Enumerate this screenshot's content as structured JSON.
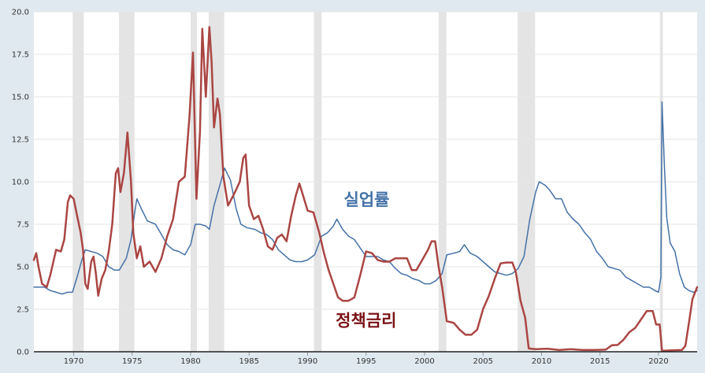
{
  "chart_data": {
    "type": "line",
    "title": "",
    "xlabel": "",
    "ylabel": "",
    "xlim": [
      1966.6,
      2023.3
    ],
    "ylim": [
      0,
      20
    ],
    "grid": "horizontal",
    "legend": "none",
    "y_ticks": [
      "0.0",
      "2.5",
      "5.0",
      "7.5",
      "10.0",
      "12.5",
      "15.0",
      "17.5",
      "20.0"
    ],
    "x_ticks": [
      "1970",
      "1975",
      "1980",
      "1985",
      "1990",
      "1995",
      "2000",
      "2005",
      "2010",
      "2015",
      "2020"
    ],
    "colors": {
      "background": "#e1e9f0",
      "plot_background": "#ffffff",
      "grid": "#e6e6e6",
      "recession": "#e4e4e4",
      "unemployment": "#4572a7",
      "policy_rate": "#aa4643",
      "policy_label": "#7a1216"
    },
    "recessions": [
      [
        1969.92,
        1970.87
      ],
      [
        1973.87,
        1975.2
      ],
      [
        1980.0,
        1980.54
      ],
      [
        1981.54,
        1982.87
      ],
      [
        1990.54,
        1991.2
      ],
      [
        2001.2,
        2001.87
      ],
      [
        2007.95,
        2009.45
      ],
      [
        2020.12,
        2020.37
      ]
    ],
    "series": [
      {
        "name": "실업률",
        "color": "#4572a7",
        "points": [
          [
            1966.6,
            3.8
          ],
          [
            1967.5,
            3.8
          ],
          [
            1968.0,
            3.6
          ],
          [
            1968.5,
            3.5
          ],
          [
            1969.0,
            3.4
          ],
          [
            1969.5,
            3.5
          ],
          [
            1969.9,
            3.5
          ],
          [
            1970.3,
            4.4
          ],
          [
            1970.7,
            5.4
          ],
          [
            1971.0,
            6.0
          ],
          [
            1971.5,
            5.9
          ],
          [
            1972.0,
            5.8
          ],
          [
            1972.5,
            5.6
          ],
          [
            1973.0,
            5.0
          ],
          [
            1973.5,
            4.8
          ],
          [
            1973.9,
            4.8
          ],
          [
            1974.5,
            5.5
          ],
          [
            1974.9,
            6.6
          ],
          [
            1975.2,
            8.1
          ],
          [
            1975.4,
            9.0
          ],
          [
            1975.8,
            8.4
          ],
          [
            1976.3,
            7.7
          ],
          [
            1977.0,
            7.5
          ],
          [
            1977.5,
            6.9
          ],
          [
            1978.0,
            6.3
          ],
          [
            1978.5,
            6.0
          ],
          [
            1979.0,
            5.9
          ],
          [
            1979.5,
            5.7
          ],
          [
            1980.0,
            6.3
          ],
          [
            1980.4,
            7.5
          ],
          [
            1980.8,
            7.5
          ],
          [
            1981.3,
            7.4
          ],
          [
            1981.6,
            7.2
          ],
          [
            1982.0,
            8.6
          ],
          [
            1982.5,
            9.8
          ],
          [
            1982.9,
            10.8
          ],
          [
            1983.4,
            10.1
          ],
          [
            1983.9,
            8.4
          ],
          [
            1984.3,
            7.5
          ],
          [
            1984.8,
            7.3
          ],
          [
            1985.5,
            7.2
          ],
          [
            1986.0,
            7.0
          ],
          [
            1986.5,
            6.9
          ],
          [
            1987.0,
            6.6
          ],
          [
            1987.5,
            6.0
          ],
          [
            1988.0,
            5.7
          ],
          [
            1988.5,
            5.4
          ],
          [
            1989.0,
            5.3
          ],
          [
            1989.5,
            5.3
          ],
          [
            1990.0,
            5.4
          ],
          [
            1990.6,
            5.7
          ],
          [
            1991.2,
            6.8
          ],
          [
            1991.7,
            7.0
          ],
          [
            1992.2,
            7.4
          ],
          [
            1992.5,
            7.8
          ],
          [
            1993.0,
            7.2
          ],
          [
            1993.5,
            6.8
          ],
          [
            1994.0,
            6.6
          ],
          [
            1994.5,
            6.1
          ],
          [
            1995.0,
            5.6
          ],
          [
            1995.5,
            5.6
          ],
          [
            1996.0,
            5.6
          ],
          [
            1996.5,
            5.4
          ],
          [
            1997.0,
            5.3
          ],
          [
            1997.5,
            4.9
          ],
          [
            1998.0,
            4.6
          ],
          [
            1998.5,
            4.5
          ],
          [
            1999.0,
            4.3
          ],
          [
            1999.5,
            4.2
          ],
          [
            2000.0,
            4.0
          ],
          [
            2000.5,
            4.0
          ],
          [
            2001.0,
            4.2
          ],
          [
            2001.5,
            4.6
          ],
          [
            2001.9,
            5.7
          ],
          [
            2002.5,
            5.8
          ],
          [
            2003.0,
            5.9
          ],
          [
            2003.4,
            6.3
          ],
          [
            2003.9,
            5.8
          ],
          [
            2004.5,
            5.6
          ],
          [
            2005.0,
            5.3
          ],
          [
            2005.5,
            5.0
          ],
          [
            2006.0,
            4.7
          ],
          [
            2006.5,
            4.6
          ],
          [
            2007.0,
            4.5
          ],
          [
            2007.5,
            4.6
          ],
          [
            2008.0,
            4.9
          ],
          [
            2008.5,
            5.6
          ],
          [
            2009.0,
            7.8
          ],
          [
            2009.5,
            9.4
          ],
          [
            2009.8,
            10.0
          ],
          [
            2010.3,
            9.8
          ],
          [
            2010.7,
            9.5
          ],
          [
            2011.2,
            9.0
          ],
          [
            2011.7,
            9.0
          ],
          [
            2012.2,
            8.2
          ],
          [
            2012.7,
            7.8
          ],
          [
            2013.2,
            7.5
          ],
          [
            2013.7,
            7.0
          ],
          [
            2014.2,
            6.6
          ],
          [
            2014.7,
            5.9
          ],
          [
            2015.2,
            5.5
          ],
          [
            2015.7,
            5.0
          ],
          [
            2016.2,
            4.9
          ],
          [
            2016.7,
            4.8
          ],
          [
            2017.2,
            4.4
          ],
          [
            2017.7,
            4.2
          ],
          [
            2018.2,
            4.0
          ],
          [
            2018.7,
            3.8
          ],
          [
            2019.2,
            3.8
          ],
          [
            2019.7,
            3.6
          ],
          [
            2020.0,
            3.5
          ],
          [
            2020.2,
            4.4
          ],
          [
            2020.3,
            14.7
          ],
          [
            2020.5,
            11.0
          ],
          [
            2020.7,
            7.9
          ],
          [
            2021.0,
            6.4
          ],
          [
            2021.4,
            5.9
          ],
          [
            2021.8,
            4.6
          ],
          [
            2022.2,
            3.8
          ],
          [
            2022.6,
            3.6
          ],
          [
            2023.0,
            3.5
          ],
          [
            2023.3,
            3.6
          ]
        ]
      },
      {
        "name": "정책금리",
        "color": "#aa4643",
        "points": [
          [
            1966.6,
            5.4
          ],
          [
            1966.8,
            5.8
          ],
          [
            1967.0,
            5.0
          ],
          [
            1967.3,
            4.0
          ],
          [
            1967.7,
            3.8
          ],
          [
            1968.0,
            4.5
          ],
          [
            1968.5,
            6.0
          ],
          [
            1968.9,
            5.9
          ],
          [
            1969.2,
            6.6
          ],
          [
            1969.5,
            8.8
          ],
          [
            1969.7,
            9.2
          ],
          [
            1970.0,
            9.0
          ],
          [
            1970.3,
            8.0
          ],
          [
            1970.6,
            7.0
          ],
          [
            1970.8,
            6.0
          ],
          [
            1971.0,
            4.0
          ],
          [
            1971.2,
            3.7
          ],
          [
            1971.5,
            5.3
          ],
          [
            1971.7,
            5.6
          ],
          [
            1971.9,
            4.6
          ],
          [
            1972.1,
            3.3
          ],
          [
            1972.4,
            4.3
          ],
          [
            1972.7,
            4.8
          ],
          [
            1973.0,
            5.9
          ],
          [
            1973.3,
            7.5
          ],
          [
            1973.6,
            10.5
          ],
          [
            1973.8,
            10.8
          ],
          [
            1974.0,
            9.4
          ],
          [
            1974.3,
            10.5
          ],
          [
            1974.6,
            12.9
          ],
          [
            1974.9,
            10.0
          ],
          [
            1975.1,
            7.0
          ],
          [
            1975.4,
            5.5
          ],
          [
            1975.7,
            6.2
          ],
          [
            1976.0,
            5.0
          ],
          [
            1976.5,
            5.3
          ],
          [
            1977.0,
            4.7
          ],
          [
            1977.5,
            5.5
          ],
          [
            1978.0,
            6.8
          ],
          [
            1978.5,
            7.8
          ],
          [
            1979.0,
            10.0
          ],
          [
            1979.5,
            10.3
          ],
          [
            1979.9,
            13.8
          ],
          [
            1980.2,
            17.6
          ],
          [
            1980.5,
            9.0
          ],
          [
            1980.8,
            13.0
          ],
          [
            1981.0,
            19.0
          ],
          [
            1981.3,
            15.0
          ],
          [
            1981.6,
            19.1
          ],
          [
            1981.8,
            17.0
          ],
          [
            1982.0,
            13.2
          ],
          [
            1982.3,
            14.9
          ],
          [
            1982.5,
            14.0
          ],
          [
            1982.8,
            10.3
          ],
          [
            1983.2,
            8.6
          ],
          [
            1983.5,
            9.0
          ],
          [
            1983.8,
            9.4
          ],
          [
            1984.2,
            10.0
          ],
          [
            1984.5,
            11.4
          ],
          [
            1984.7,
            11.6
          ],
          [
            1985.0,
            8.6
          ],
          [
            1985.4,
            7.8
          ],
          [
            1985.8,
            8.0
          ],
          [
            1986.2,
            7.2
          ],
          [
            1986.6,
            6.2
          ],
          [
            1987.0,
            6.0
          ],
          [
            1987.4,
            6.7
          ],
          [
            1987.8,
            6.9
          ],
          [
            1988.2,
            6.5
          ],
          [
            1988.6,
            8.0
          ],
          [
            1989.0,
            9.2
          ],
          [
            1989.3,
            9.9
          ],
          [
            1989.7,
            9.0
          ],
          [
            1990.0,
            8.3
          ],
          [
            1990.5,
            8.2
          ],
          [
            1991.0,
            7.0
          ],
          [
            1991.4,
            5.8
          ],
          [
            1991.8,
            4.8
          ],
          [
            1992.2,
            4.0
          ],
          [
            1992.6,
            3.2
          ],
          [
            1993.0,
            3.0
          ],
          [
            1993.5,
            3.0
          ],
          [
            1994.0,
            3.2
          ],
          [
            1994.5,
            4.5
          ],
          [
            1995.0,
            5.9
          ],
          [
            1995.5,
            5.8
          ],
          [
            1996.0,
            5.4
          ],
          [
            1996.5,
            5.3
          ],
          [
            1997.0,
            5.3
          ],
          [
            1997.5,
            5.5
          ],
          [
            1998.0,
            5.5
          ],
          [
            1998.5,
            5.5
          ],
          [
            1998.9,
            4.8
          ],
          [
            1999.3,
            4.8
          ],
          [
            1999.8,
            5.4
          ],
          [
            2000.3,
            6.0
          ],
          [
            2000.6,
            6.5
          ],
          [
            2000.9,
            6.5
          ],
          [
            2001.2,
            5.0
          ],
          [
            2001.5,
            3.8
          ],
          [
            2001.9,
            1.8
          ],
          [
            2002.5,
            1.7
          ],
          [
            2003.0,
            1.3
          ],
          [
            2003.5,
            1.0
          ],
          [
            2004.0,
            1.0
          ],
          [
            2004.5,
            1.3
          ],
          [
            2005.0,
            2.5
          ],
          [
            2005.5,
            3.3
          ],
          [
            2006.0,
            4.3
          ],
          [
            2006.5,
            5.2
          ],
          [
            2007.0,
            5.25
          ],
          [
            2007.5,
            5.25
          ],
          [
            2007.8,
            4.7
          ],
          [
            2008.2,
            3.0
          ],
          [
            2008.6,
            2.0
          ],
          [
            2008.9,
            0.2
          ],
          [
            2009.5,
            0.15
          ],
          [
            2010.5,
            0.18
          ],
          [
            2011.5,
            0.1
          ],
          [
            2012.5,
            0.15
          ],
          [
            2013.5,
            0.1
          ],
          [
            2014.5,
            0.1
          ],
          [
            2015.5,
            0.13
          ],
          [
            2016.0,
            0.38
          ],
          [
            2016.5,
            0.4
          ],
          [
            2017.0,
            0.7
          ],
          [
            2017.5,
            1.15
          ],
          [
            2018.0,
            1.4
          ],
          [
            2018.5,
            1.9
          ],
          [
            2019.0,
            2.4
          ],
          [
            2019.5,
            2.4
          ],
          [
            2019.8,
            1.6
          ],
          [
            2020.1,
            1.6
          ],
          [
            2020.3,
            0.05
          ],
          [
            2021.0,
            0.08
          ],
          [
            2022.0,
            0.1
          ],
          [
            2022.3,
            0.35
          ],
          [
            2022.6,
            1.7
          ],
          [
            2022.9,
            3.1
          ],
          [
            2023.3,
            3.8
          ]
        ]
      }
    ],
    "annotations": [
      {
        "text": "실업률",
        "x": 1993.1,
        "y": 8.6,
        "color": "#4572a7"
      },
      {
        "text": "정책금리",
        "x": 1992.4,
        "y": 1.5,
        "color": "#7a1216"
      }
    ]
  }
}
